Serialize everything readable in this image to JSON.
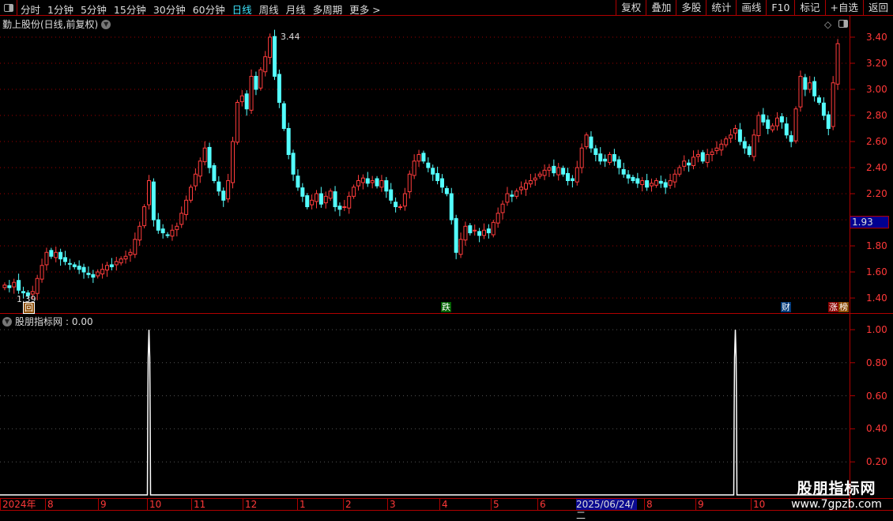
{
  "toolbar": {
    "icon": "layout-toggle-icon",
    "periods": [
      "分时",
      "1分钟",
      "5分钟",
      "15分钟",
      "30分钟",
      "60分钟",
      "日线",
      "周线",
      "月线",
      "多周期",
      "更多 >"
    ],
    "active_period": "日线",
    "buttons": [
      "复权",
      "叠加",
      "多股",
      "统计",
      "画线",
      "F10",
      "标记",
      "+自选",
      "返回"
    ]
  },
  "main_chart": {
    "title": "勤上股份(日线,前复权)",
    "y_ticks": [
      "3.40",
      "3.20",
      "3.00",
      "2.80",
      "2.60",
      "2.40",
      "2.20",
      "2.00",
      "1.80",
      "1.60",
      "1.40"
    ],
    "current_price": "1.93",
    "high_label": "3.44",
    "low_label": "1.39",
    "markers": {
      "hui": "回",
      "die": "跌",
      "cai": "财",
      "zhangting": "涨",
      "bang": "榜"
    },
    "colors": {
      "up": "#ff3c3c",
      "down": "#54ffff",
      "grid": "#a00000",
      "axis": "#b00000"
    }
  },
  "indicator": {
    "title": "股朋指标网",
    "value": ": 0.00",
    "y_ticks": [
      "1.00",
      "0.80",
      "0.60",
      "0.40",
      "0.20"
    ]
  },
  "x_axis": {
    "labels": [
      "2024年",
      "8",
      "9",
      "10",
      "11",
      "12",
      "1",
      "2",
      "3",
      "4",
      "5",
      "6",
      "8",
      "9",
      "10"
    ],
    "cursor_date": "2025/06/24/二"
  },
  "watermark": {
    "name": "股朋指标网",
    "url": "www.7gpzb.com"
  },
  "chart_data": {
    "type": "candlestick",
    "y_range": [
      1.3,
      3.5
    ],
    "close": [
      1.5,
      1.48,
      1.52,
      1.46,
      1.44,
      1.42,
      1.45,
      1.55,
      1.65,
      1.75,
      1.72,
      1.75,
      1.7,
      1.68,
      1.66,
      1.64,
      1.62,
      1.6,
      1.58,
      1.56,
      1.6,
      1.62,
      1.65,
      1.64,
      1.68,
      1.7,
      1.72,
      1.75,
      1.85,
      1.95,
      2.1,
      2.3,
      2.0,
      1.92,
      1.9,
      1.88,
      1.92,
      1.95,
      2.05,
      2.15,
      2.25,
      2.35,
      2.45,
      2.55,
      2.4,
      2.3,
      2.22,
      2.15,
      2.3,
      2.6,
      2.9,
      2.95,
      2.85,
      3.1,
      3.0,
      3.15,
      3.25,
      3.4,
      3.1,
      2.9,
      2.7,
      2.5,
      2.35,
      2.25,
      2.18,
      2.1,
      2.15,
      2.2,
      2.12,
      2.18,
      2.22,
      2.1,
      2.08,
      2.1,
      2.18,
      2.25,
      2.3,
      2.32,
      2.28,
      2.3,
      2.26,
      2.3,
      2.22,
      2.15,
      2.1,
      2.1,
      2.2,
      2.35,
      2.45,
      2.5,
      2.45,
      2.4,
      2.35,
      2.3,
      2.25,
      2.2,
      2.0,
      1.75,
      1.85,
      1.95,
      1.9,
      1.92,
      1.88,
      1.92,
      1.9,
      1.98,
      2.05,
      2.12,
      2.2,
      2.18,
      2.22,
      2.25,
      2.28,
      2.3,
      2.32,
      2.35,
      2.38,
      2.4,
      2.36,
      2.4,
      2.35,
      2.3,
      2.3,
      2.4,
      2.55,
      2.65,
      2.55,
      2.5,
      2.45,
      2.45,
      2.5,
      2.45,
      2.4,
      2.35,
      2.32,
      2.3,
      2.28,
      2.3,
      2.25,
      2.28,
      2.3,
      2.28,
      2.25,
      2.3,
      2.35,
      2.4,
      2.45,
      2.42,
      2.48,
      2.5,
      2.45,
      2.5,
      2.52,
      2.55,
      2.58,
      2.62,
      2.65,
      2.7,
      2.6,
      2.55,
      2.5,
      2.65,
      2.8,
      2.75,
      2.7,
      2.72,
      2.78,
      2.75,
      2.65,
      2.6,
      2.85,
      3.1,
      3.0,
      3.05,
      2.95,
      2.9,
      2.8,
      2.7,
      3.05,
      3.35
    ],
    "indicator_signals": [
      {
        "bar": 31,
        "value": 1.0
      },
      {
        "bar": 157,
        "value": 1.0
      }
    ],
    "indicator_range": [
      0,
      1.0
    ]
  }
}
